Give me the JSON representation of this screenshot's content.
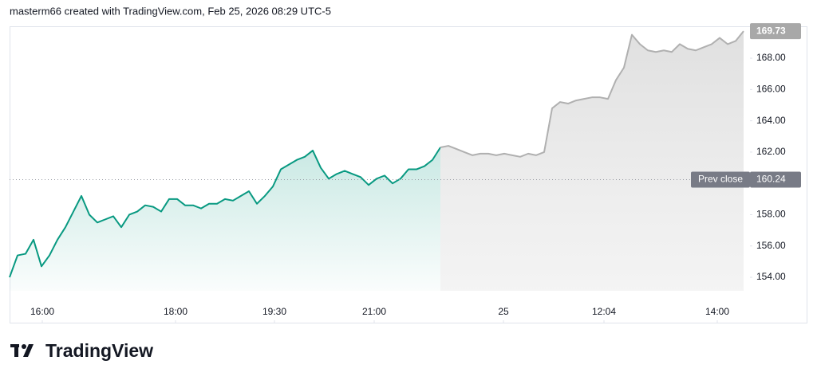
{
  "header": {
    "text": "masterm66 created with TradingView.com, Feb 25, 2026 08:29 UTC-5"
  },
  "logo": {
    "text": "TradingView"
  },
  "chart_data": {
    "type": "line",
    "x": [
      0,
      1,
      2,
      3,
      4,
      5,
      6,
      7,
      8,
      9,
      10,
      11,
      12,
      13,
      14,
      15,
      16,
      17,
      18,
      19,
      20,
      21,
      22,
      23,
      24,
      25,
      26,
      27,
      28,
      29,
      30,
      31,
      32,
      33,
      34,
      35,
      36,
      37,
      38,
      39,
      40,
      41,
      42,
      43,
      44,
      45,
      46,
      47,
      48,
      49,
      50,
      51,
      52,
      53,
      54,
      55,
      56,
      57,
      58,
      59,
      60,
      61,
      62,
      63,
      64,
      65,
      66,
      67,
      68,
      69,
      70,
      71,
      72,
      73,
      74,
      75,
      76,
      77,
      78,
      79,
      80,
      81,
      82,
      83,
      84,
      85,
      86,
      87,
      88,
      89,
      90,
      91,
      92
    ],
    "series": [
      {
        "color": "#089981",
        "values": [
          154.0,
          155.4,
          155.5,
          156.4,
          154.7,
          155.4,
          156.4,
          157.2,
          158.2,
          159.2,
          158.0,
          157.5,
          157.7,
          157.9,
          157.2,
          158.0,
          158.2,
          158.6,
          158.5,
          158.2,
          159.0,
          159.0,
          158.6,
          158.6,
          158.4,
          158.7,
          158.7,
          159.0,
          158.9,
          159.2,
          159.5,
          158.7,
          159.2,
          159.8,
          160.9,
          161.2,
          161.5,
          161.7,
          162.1,
          161.0,
          160.3,
          160.6,
          160.8,
          160.6,
          160.4,
          159.9,
          160.3,
          160.5,
          160.0,
          160.3,
          160.9,
          160.9,
          161.1,
          161.5,
          162.3,
          null,
          null,
          null,
          null,
          null,
          null,
          null,
          null,
          null,
          null,
          null,
          null,
          null,
          null,
          null,
          null,
          null,
          null,
          null,
          null,
          null,
          null,
          null,
          null,
          null,
          null,
          null,
          null,
          null,
          null,
          null,
          null,
          null,
          null,
          null,
          null,
          null,
          null
        ]
      },
      {
        "color": "#b0b0b0",
        "values": [
          null,
          null,
          null,
          null,
          null,
          null,
          null,
          null,
          null,
          null,
          null,
          null,
          null,
          null,
          null,
          null,
          null,
          null,
          null,
          null,
          null,
          null,
          null,
          null,
          null,
          null,
          null,
          null,
          null,
          null,
          null,
          null,
          null,
          null,
          null,
          null,
          null,
          null,
          null,
          null,
          null,
          null,
          null,
          null,
          null,
          null,
          null,
          null,
          null,
          null,
          null,
          null,
          null,
          null,
          162.3,
          162.4,
          162.2,
          162.0,
          161.8,
          161.9,
          161.9,
          161.8,
          161.9,
          161.8,
          161.7,
          161.9,
          161.8,
          162.0,
          164.8,
          165.2,
          165.1,
          165.3,
          165.4,
          165.5,
          165.5,
          165.4,
          166.6,
          167.4,
          169.5,
          168.9,
          168.5,
          168.4,
          168.5,
          168.4,
          168.9,
          168.6,
          168.5,
          168.7,
          168.9,
          169.3,
          168.9,
          169.1,
          169.73
        ]
      }
    ],
    "xlim": [
      0,
      92.8
    ],
    "xticks": [
      {
        "value": 4.1,
        "label": "16:00"
      },
      {
        "value": 20.8,
        "label": "18:00"
      },
      {
        "value": 33.2,
        "label": "19:30"
      },
      {
        "value": 45.7,
        "label": "21:00"
      },
      {
        "value": 61.9,
        "label": "25"
      },
      {
        "value": 74.5,
        "label": "12:04"
      },
      {
        "value": 88.7,
        "label": "14:00"
      }
    ],
    "ylim": [
      151.1,
      170.04
    ],
    "yticks": [
      {
        "value": 154,
        "label": "154.00"
      },
      {
        "value": 156,
        "label": "156.00"
      },
      {
        "value": 158,
        "label": "158.00"
      },
      {
        "value": 160,
        "label": "160.00"
      },
      {
        "value": 162,
        "label": "162.00"
      },
      {
        "value": 164,
        "label": "164.00"
      },
      {
        "value": 166,
        "label": "166.00"
      },
      {
        "value": 168,
        "label": "168.00"
      }
    ],
    "last_price": 169.73,
    "prev_close": {
      "name": "Prev close",
      "value": 160.24
    }
  }
}
